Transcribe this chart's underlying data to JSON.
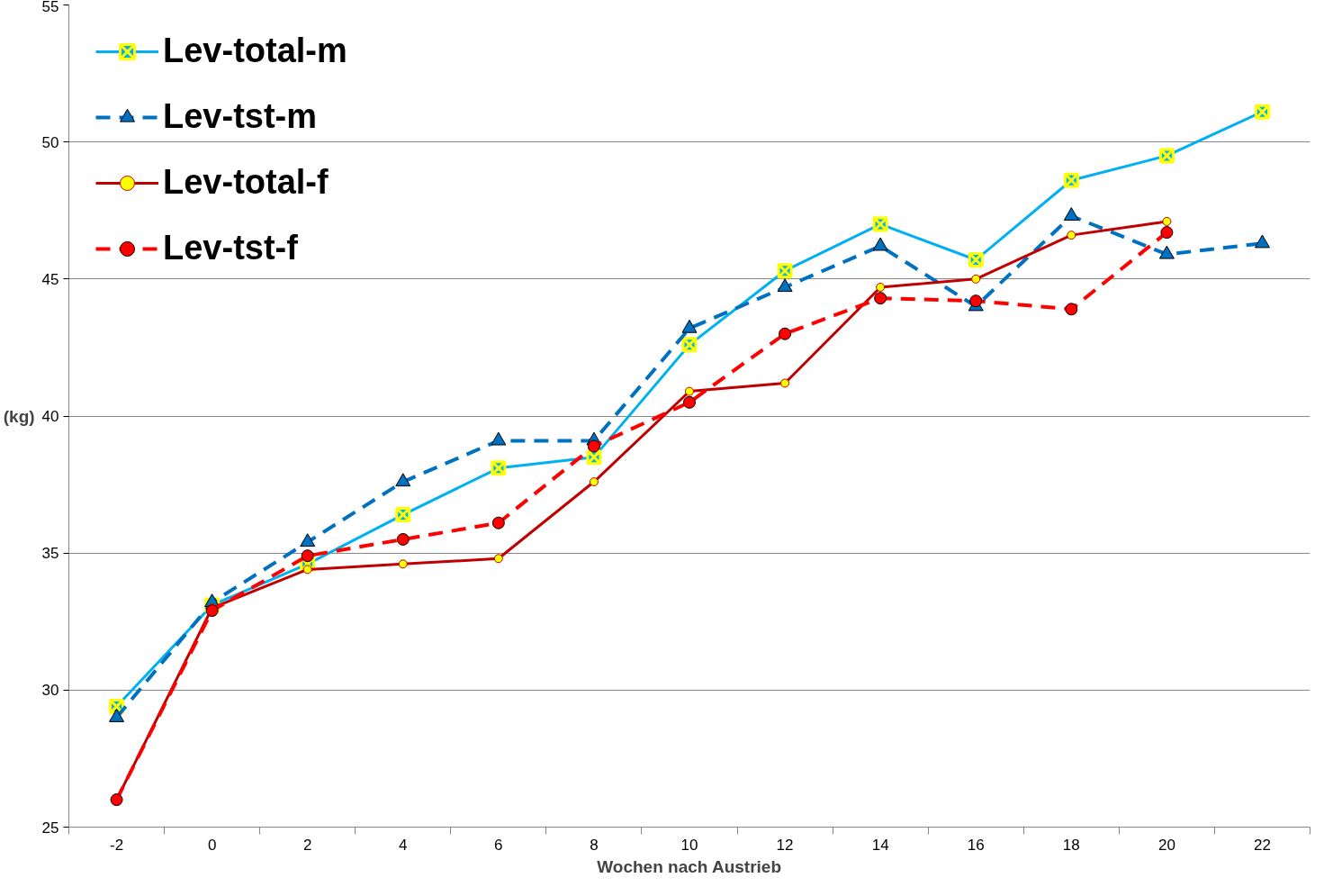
{
  "chart_data": {
    "type": "line",
    "xlabel": "Wochen nach Austrieb",
    "ylabel": "(kg)",
    "categories": [
      "-2",
      "0",
      "2",
      "4",
      "6",
      "8",
      "10",
      "12",
      "14",
      "16",
      "18",
      "20",
      "22"
    ],
    "ylim": [
      25,
      55
    ],
    "yticks": [
      25,
      30,
      35,
      40,
      45,
      50,
      55
    ],
    "grid": "y",
    "legend": "top left",
    "series": [
      {
        "name": "Lev-total-m",
        "color": "#00b0f0",
        "marker": "cross",
        "line_style": "solid",
        "values": [
          29.4,
          33.1,
          34.6,
          36.4,
          38.1,
          38.5,
          42.6,
          45.3,
          47.0,
          45.7,
          48.6,
          49.5,
          51.1
        ]
      },
      {
        "name": "Lev-tst-m",
        "color": "#0070c0",
        "marker": "triangle",
        "line_style": "dashed",
        "values": [
          29.0,
          33.2,
          35.4,
          37.6,
          39.1,
          39.1,
          43.2,
          44.7,
          46.2,
          44.0,
          47.3,
          45.9,
          46.3
        ]
      },
      {
        "name": "Lev-total-f",
        "color": "#c00000",
        "marker": "circle",
        "line_style": "solid",
        "values": [
          26.0,
          33.0,
          34.4,
          34.6,
          34.8,
          37.6,
          40.9,
          41.2,
          44.7,
          45.0,
          46.6,
          47.1,
          null
        ]
      },
      {
        "name": "Lev-tst-f",
        "color": "#ff0000",
        "marker": "circle",
        "line_style": "dashed",
        "values": [
          26.0,
          32.9,
          34.9,
          35.5,
          36.1,
          38.9,
          40.5,
          43.0,
          44.3,
          44.2,
          43.9,
          46.7,
          null
        ]
      }
    ]
  }
}
